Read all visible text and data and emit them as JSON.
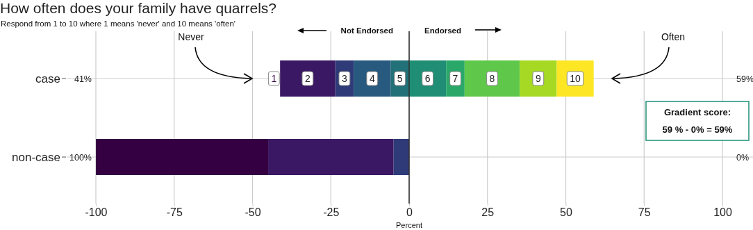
{
  "chart_data": {
    "type": "bar",
    "orientation": "horizontal",
    "stacked": true,
    "title": "How often does your family have quarrels?",
    "subtitle": "Respond from 1 to 10 where 1 means 'never' and 10 means 'often'",
    "xlabel": "Percent",
    "categories": [
      "case",
      "non-case"
    ],
    "series": [
      {
        "name": "5",
        "color": "#227078",
        "values": [
          -5.9,
          0
        ]
      },
      {
        "name": "4",
        "color": "#275a7e",
        "values": [
          -11.8,
          0
        ]
      },
      {
        "name": "3",
        "color": "#2e3b78",
        "values": [
          -5.9,
          -5
        ]
      },
      {
        "name": "2",
        "color": "#3a1863",
        "values": [
          -17.6,
          -40
        ]
      },
      {
        "name": "1",
        "color": "#350042",
        "values": [
          0,
          -55
        ]
      },
      {
        "name": "6",
        "color": "#1f8e75",
        "values": [
          11.8,
          0
        ]
      },
      {
        "name": "7",
        "color": "#2aa86a",
        "values": [
          5.9,
          0
        ]
      },
      {
        "name": "8",
        "color": "#5fc84a",
        "values": [
          17.6,
          0
        ]
      },
      {
        "name": "9",
        "color": "#a5d923",
        "values": [
          11.8,
          0
        ]
      },
      {
        "name": "10",
        "color": "#fde725",
        "values": [
          11.8,
          0
        ]
      }
    ],
    "xlim": [
      -100,
      100
    ],
    "xticks": [
      -100,
      -75,
      -50,
      -25,
      0,
      25,
      50,
      75,
      100
    ],
    "grid": true,
    "ref_lines": [
      {
        "axis": "x",
        "value": 0,
        "color": "#333333"
      }
    ],
    "annotations": [
      "Not Endorsed",
      "Endorsed",
      "Never",
      "Often",
      "41%",
      "100%",
      "59%",
      "0%",
      "Gradient score:",
      "59 % - 0% = 59%"
    ]
  }
}
